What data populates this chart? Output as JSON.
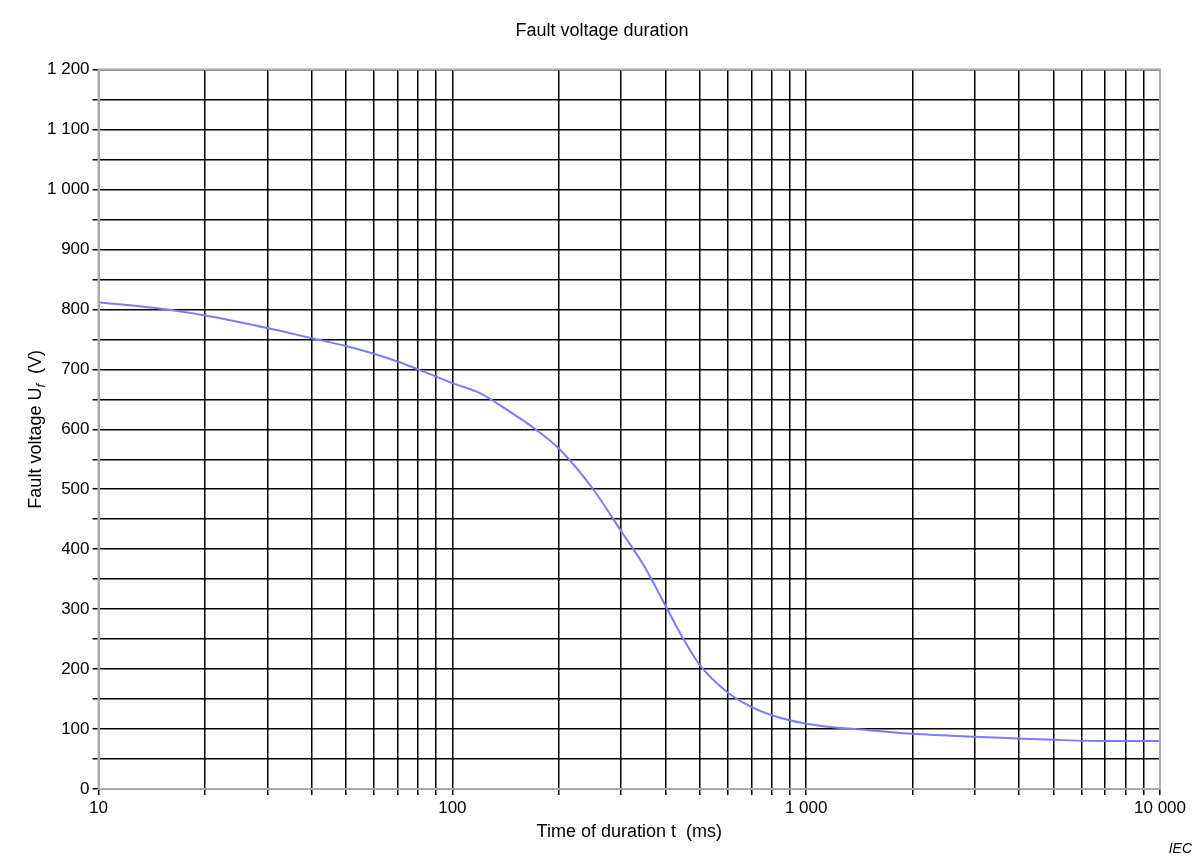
{
  "chart_data": {
    "type": "line",
    "title": "Fault voltage duration",
    "xlabel": "Time of duration t  (ms)",
    "ylabel": "Fault voltage U$_{f}$  (V)",
    "annotations": [
      "IEC"
    ],
    "series": [
      {
        "color": "#7b7bff",
        "x": [
          10,
          15,
          20,
          30,
          40,
          50,
          60,
          70,
          80,
          100,
          120,
          150,
          170,
          200,
          250,
          300,
          350,
          400,
          450,
          500,
          600,
          700,
          800,
          1000,
          1500,
          2000,
          3000,
          5000,
          7000,
          10000
        ],
        "values": [
          812,
          801,
          790,
          769,
          752,
          739,
          726,
          713,
          700,
          677,
          660,
          624,
          602,
          568,
          500,
          430,
          370,
          306,
          250,
          207,
          161,
          137,
          123,
          109,
          98,
          92,
          87,
          82,
          80,
          80
        ]
      }
    ],
    "log": "x",
    "xlim": [
      10,
      10000
    ],
    "xticks": [
      10,
      {
        "value": 20,
        "label": null
      },
      {
        "value": 30,
        "label": null
      },
      {
        "value": 40,
        "label": null
      },
      {
        "value": 50,
        "label": null
      },
      {
        "value": 60,
        "label": null
      },
      {
        "value": 70,
        "label": null
      },
      {
        "value": 80,
        "label": null
      },
      {
        "value": 90,
        "label": null
      },
      100,
      {
        "value": 200,
        "label": null
      },
      {
        "value": 300,
        "label": null
      },
      {
        "value": 400,
        "label": null
      },
      {
        "value": 500,
        "label": null
      },
      {
        "value": 600,
        "label": null
      },
      {
        "value": 700,
        "label": null
      },
      {
        "value": 800,
        "label": null
      },
      {
        "value": 900,
        "label": null
      },
      {
        "value": 1000,
        "label": "1 000"
      },
      {
        "value": 2000,
        "label": null
      },
      {
        "value": 3000,
        "label": null
      },
      {
        "value": 4000,
        "label": null
      },
      {
        "value": 5000,
        "label": null
      },
      {
        "value": 6000,
        "label": null
      },
      {
        "value": 7000,
        "label": null
      },
      {
        "value": 8000,
        "label": null
      },
      {
        "value": 9000,
        "label": null
      },
      {
        "value": 10000,
        "label": "10 000"
      }
    ],
    "ylim": [
      0,
      1200
    ],
    "yticks": [
      0,
      {
        "value": 50,
        "label": null
      },
      100,
      {
        "value": 150,
        "label": null
      },
      200,
      {
        "value": 250,
        "label": null
      },
      300,
      {
        "value": 350,
        "label": null
      },
      400,
      {
        "value": 450,
        "label": null
      },
      500,
      {
        "value": 550,
        "label": null
      },
      600,
      {
        "value": 650,
        "label": null
      },
      700,
      {
        "value": 750,
        "label": null
      },
      800,
      {
        "value": 850,
        "label": null
      },
      900,
      {
        "value": 950,
        "label": null
      },
      {
        "value": 1000,
        "label": "1 000"
      },
      {
        "value": 1050,
        "label": null
      },
      {
        "value": 1100,
        "label": "1 100"
      },
      {
        "value": 1150,
        "label": null
      },
      {
        "value": 1200,
        "label": "1 200"
      }
    ],
    "grid": true,
    "legend": false,
    "marker": "none",
    "line_style": "solid"
  }
}
